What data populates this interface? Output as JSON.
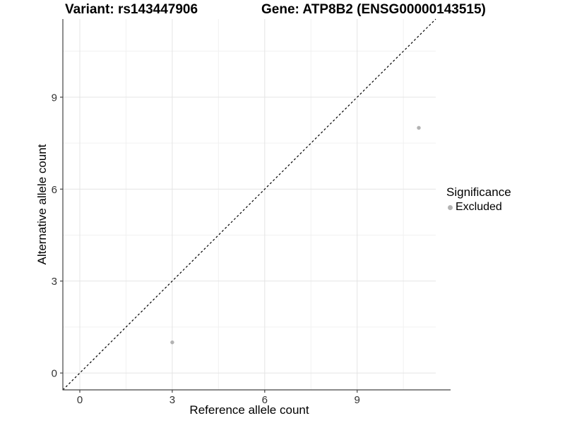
{
  "chart_data": {
    "type": "scatter",
    "title_left": "Variant: rs143447906",
    "title_right": "Gene: ATP8B2 (ENSG00000143515)",
    "xlabel": "Reference allele count",
    "ylabel": "Alternative allele count",
    "xlim": [
      -0.55,
      11.55
    ],
    "ylim": [
      -0.55,
      11.55
    ],
    "x_ticks": [
      0,
      3,
      6,
      9
    ],
    "y_ticks": [
      0,
      3,
      6,
      9
    ],
    "x_minor_ticks": [
      1.5,
      4.5,
      7.5,
      10.5
    ],
    "y_minor_ticks": [
      1.5,
      4.5,
      7.5,
      10.5
    ],
    "grid": "major+minor",
    "identity_line": {
      "style": "dashed",
      "slope": 1,
      "intercept": 0,
      "color": "#000000"
    },
    "series": [
      {
        "name": "Excluded",
        "color": "#b3b3b3",
        "points": [
          {
            "x": 3,
            "y": 1
          },
          {
            "x": 11,
            "y": 8
          }
        ]
      }
    ],
    "legend": {
      "title": "Significance",
      "position": "right",
      "items": [
        {
          "label": "Excluded",
          "color": "#b3b3b3"
        }
      ]
    },
    "colors": {
      "background": "#ffffff",
      "grid_major": "#e4e4e4",
      "grid_minor": "#f1f1f1",
      "axis_line": "#444444",
      "tick_label": "#333333",
      "title": "#000000"
    }
  }
}
